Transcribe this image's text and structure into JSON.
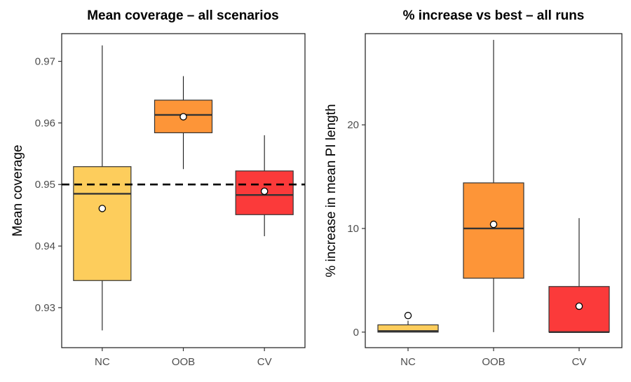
{
  "chart_data": [
    {
      "type": "boxplot",
      "title": "Mean coverage – all scenarios",
      "xlabel": "",
      "ylabel": "Mean coverage",
      "ylim": [
        0.9235,
        0.9745
      ],
      "yticks": [
        0.93,
        0.94,
        0.95,
        0.96,
        0.97
      ],
      "ytick_labels": [
        "0.93",
        "0.94",
        "0.95",
        "0.96",
        "0.97"
      ],
      "reference_line": {
        "y": 0.95,
        "style": "dashed"
      },
      "categories": [
        "NC",
        "OOB",
        "CV"
      ],
      "boxes": [
        {
          "label": "NC",
          "color": "#FDCD5C",
          "min": 0.9263,
          "q1": 0.9344,
          "median": 0.9485,
          "q3": 0.9529,
          "max": 0.9726,
          "mean": 0.9461
        },
        {
          "label": "OOB",
          "color": "#FD9538",
          "min": 0.9525,
          "q1": 0.9584,
          "median": 0.9613,
          "q3": 0.9637,
          "max": 0.9676,
          "mean": 0.961
        },
        {
          "label": "CV",
          "color": "#FB3A3A",
          "min": 0.9416,
          "q1": 0.9451,
          "median": 0.9483,
          "q3": 0.9522,
          "max": 0.958,
          "mean": 0.9489
        }
      ],
      "grid": false,
      "legend": "none"
    },
    {
      "type": "boxplot",
      "title": "% increase vs best – all runs",
      "xlabel": "",
      "ylabel": "% increase in mean PI length",
      "ylim": [
        -1.5,
        28.8
      ],
      "yticks": [
        0,
        10,
        20
      ],
      "ytick_labels": [
        "0",
        "10",
        "20"
      ],
      "categories": [
        "NC",
        "OOB",
        "CV"
      ],
      "boxes": [
        {
          "label": "NC",
          "color": "#FDCD5C",
          "min": 0.0,
          "q1": 0.0,
          "median": 0.1,
          "q3": 0.7,
          "max": 1.1,
          "mean": 1.6
        },
        {
          "label": "OOB",
          "color": "#FD9538",
          "min": 0.0,
          "q1": 5.2,
          "median": 10.0,
          "q3": 14.4,
          "max": 28.2,
          "mean": 10.4
        },
        {
          "label": "CV",
          "color": "#FB3A3A",
          "min": 0.0,
          "q1": 0.0,
          "median": 0.0,
          "q3": 4.4,
          "max": 11.0,
          "mean": 2.5
        }
      ],
      "grid": false,
      "legend": "none"
    }
  ]
}
